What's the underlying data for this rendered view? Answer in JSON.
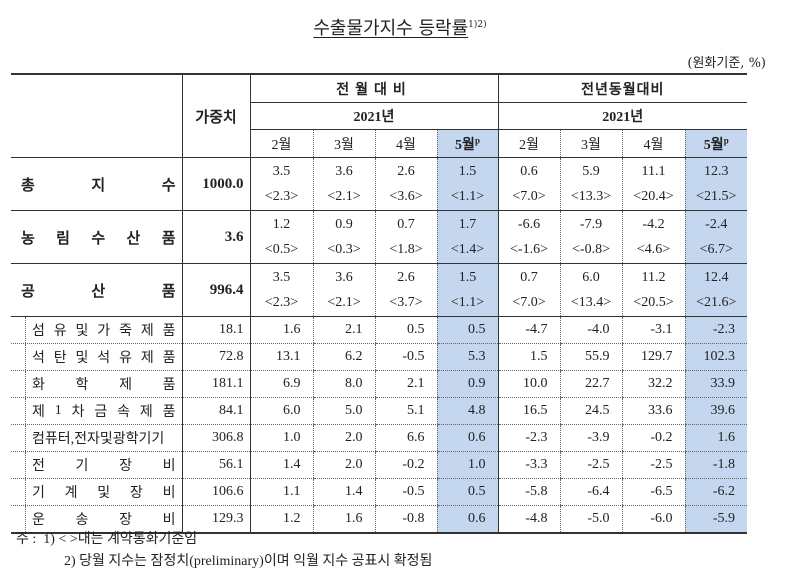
{
  "title": "수출물가지수 등락률",
  "title_footnote": "1)2)",
  "unit": "(원화기준, %)",
  "header": {
    "weight": "가중치",
    "group_mom": "전월대비",
    "group_yoy": "전년동월대비",
    "year_mom": "2021년",
    "year_yoy": "2021년",
    "months": [
      "2월",
      "3월",
      "4월",
      "5월"
    ],
    "prelim_mark": "p"
  },
  "highlight_color": "#c5d7ef",
  "rows": [
    {
      "label": [
        "총",
        "지",
        "수"
      ],
      "level": "main",
      "weight": "1000.0",
      "mom": [
        "3.5",
        "3.6",
        "2.6",
        "1.5"
      ],
      "mom_contract": [
        "<2.3>",
        "<2.1>",
        "<3.6>",
        "<1.1>"
      ],
      "yoy": [
        "0.6",
        "5.9",
        "11.1",
        "12.3"
      ],
      "yoy_contract": [
        "<7.0>",
        "<13.3>",
        "<20.4>",
        "<21.5>"
      ]
    },
    {
      "label": [
        "농",
        "림",
        "수",
        "산",
        "품"
      ],
      "level": "main",
      "weight": "3.6",
      "mom": [
        "1.2",
        "0.9",
        "0.7",
        "1.7"
      ],
      "mom_contract": [
        "<0.5>",
        "<0.3>",
        "<1.8>",
        "<1.4>"
      ],
      "yoy": [
        "-6.6",
        "-7.9",
        "-4.2",
        "-2.4"
      ],
      "yoy_contract": [
        "<-1.6>",
        "<-0.8>",
        "<4.6>",
        "<6.7>"
      ]
    },
    {
      "label": [
        "공",
        "산",
        "품"
      ],
      "level": "main",
      "weight": "996.4",
      "mom": [
        "3.5",
        "3.6",
        "2.6",
        "1.5"
      ],
      "mom_contract": [
        "<2.3>",
        "<2.1>",
        "<3.7>",
        "<1.1>"
      ],
      "yoy": [
        "0.7",
        "6.0",
        "11.2",
        "12.4"
      ],
      "yoy_contract": [
        "<7.0>",
        "<13.4>",
        "<20.5>",
        "<21.6>"
      ]
    },
    {
      "label": [
        "섬",
        "유",
        "및",
        "가",
        "죽",
        "제",
        "품"
      ],
      "level": "sub",
      "weight": "18.1",
      "mom": [
        "1.6",
        "2.1",
        "0.5",
        "0.5"
      ],
      "yoy": [
        "-4.7",
        "-4.0",
        "-3.1",
        "-2.3"
      ]
    },
    {
      "label": [
        "석",
        "탄",
        "및",
        "석",
        "유",
        "제",
        "품"
      ],
      "level": "sub",
      "weight": "72.8",
      "mom": [
        "13.1",
        "6.2",
        "-0.5",
        "5.3"
      ],
      "yoy": [
        "1.5",
        "55.9",
        "129.7",
        "102.3"
      ]
    },
    {
      "label": [
        "화",
        "학",
        "제",
        "품"
      ],
      "level": "sub",
      "weight": "181.1",
      "mom": [
        "6.9",
        "8.0",
        "2.1",
        "0.9"
      ],
      "yoy": [
        "10.0",
        "22.7",
        "32.2",
        "33.9"
      ]
    },
    {
      "label": [
        "제",
        "1",
        "차",
        "금",
        "속",
        "제",
        "품"
      ],
      "level": "sub",
      "weight": "84.1",
      "mom": [
        "6.0",
        "5.0",
        "5.1",
        "4.8"
      ],
      "yoy": [
        "16.5",
        "24.5",
        "33.6",
        "39.6"
      ]
    },
    {
      "label": [
        "컴퓨터,전자및광학기기"
      ],
      "level": "sub",
      "weight": "306.8",
      "mom": [
        "1.0",
        "2.0",
        "6.6",
        "0.6"
      ],
      "yoy": [
        "-2.3",
        "-3.9",
        "-0.2",
        "1.6"
      ]
    },
    {
      "label": [
        "전",
        "기",
        "장",
        "비"
      ],
      "level": "sub",
      "weight": "56.1",
      "mom": [
        "1.4",
        "2.0",
        "-0.2",
        "1.0"
      ],
      "yoy": [
        "-3.3",
        "-2.5",
        "-2.5",
        "-1.8"
      ]
    },
    {
      "label": [
        "기",
        "계",
        "및",
        "장",
        "비"
      ],
      "level": "sub",
      "weight": "106.6",
      "mom": [
        "1.1",
        "1.4",
        "-0.5",
        "0.5"
      ],
      "yoy": [
        "-5.8",
        "-6.4",
        "-6.5",
        "-6.2"
      ]
    },
    {
      "label": [
        "운",
        "송",
        "장",
        "비"
      ],
      "level": "sub",
      "weight": "129.3",
      "mom": [
        "1.2",
        "1.6",
        "-0.8",
        "0.6"
      ],
      "yoy": [
        "-4.8",
        "-5.0",
        "-6.0",
        "-5.9"
      ]
    }
  ],
  "notes": {
    "prefix": "주 :",
    "note1": "1) < >내는 계약통화기준임",
    "note2": "2) 당월 지수는 잠정치(preliminary)이며 익월 지수 공표시 확정됨"
  }
}
